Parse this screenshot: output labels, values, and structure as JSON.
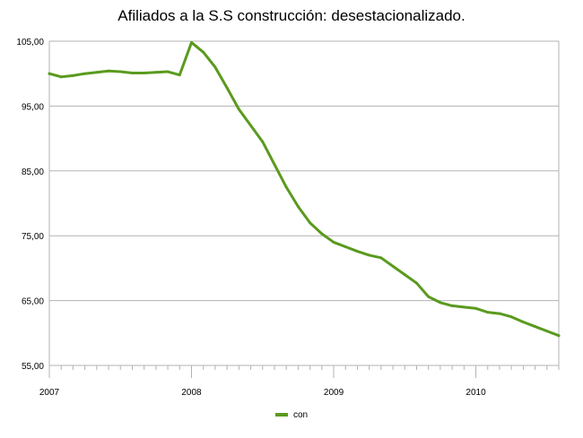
{
  "chart_data": {
    "type": "line",
    "title": "Afiliados a la S.S construcción: desestacionalizado.",
    "xlabel": "",
    "ylabel": "",
    "ylim": [
      55,
      105
    ],
    "yticks": [
      "55,00",
      "65,00",
      "75,00",
      "85,00",
      "95,00",
      "105,00"
    ],
    "ytick_values": [
      55,
      65,
      75,
      85,
      95,
      105
    ],
    "x_start_year": 2007,
    "xticks": [
      {
        "label": "2007",
        "month_index": 0
      },
      {
        "label": "2008",
        "month_index": 12
      },
      {
        "label": "2009",
        "month_index": 24
      },
      {
        "label": "2010",
        "month_index": 36
      }
    ],
    "grid": true,
    "legend_position": "bottom",
    "line_color": "#5a9a1e",
    "series": [
      {
        "name": "con",
        "values": [
          100.0,
          99.5,
          99.7,
          100.0,
          100.2,
          100.4,
          100.3,
          100.1,
          100.1,
          100.2,
          100.3,
          99.8,
          104.8,
          103.3,
          101.0,
          97.8,
          94.5,
          92.0,
          89.5,
          86.0,
          82.5,
          79.5,
          77.0,
          75.3,
          74.0,
          73.3,
          72.6,
          72.0,
          71.6,
          70.3,
          69.0,
          67.7,
          65.6,
          64.7,
          64.2,
          64.0,
          63.8,
          63.2,
          63.0,
          62.5,
          61.7,
          61.0,
          60.3,
          59.6
        ]
      }
    ]
  }
}
